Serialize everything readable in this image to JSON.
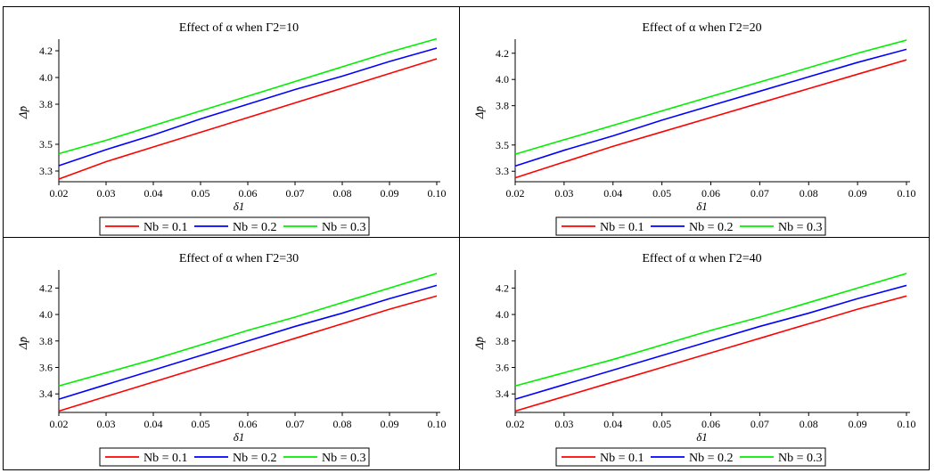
{
  "chart_data": [
    {
      "type": "line",
      "title": "Effect of α when Γ2=10",
      "xlabel": "δ1",
      "ylabel": "Δp̄",
      "xlim": [
        0.02,
        0.1
      ],
      "ylim": [
        3.22,
        4.26
      ],
      "xticks": [
        0.02,
        0.03,
        0.04,
        0.05,
        0.06,
        0.07,
        0.08,
        0.09,
        0.1
      ],
      "yticks": [
        3.3,
        3.5,
        3.8,
        4.0,
        4.2
      ],
      "x": [
        0.02,
        0.03,
        0.04,
        0.05,
        0.06,
        0.07,
        0.08,
        0.09,
        0.1
      ],
      "series": [
        {
          "name": "Nb = 0.1",
          "color": "#ff0000",
          "values": [
            3.24,
            3.37,
            3.48,
            3.59,
            3.7,
            3.81,
            3.92,
            4.03,
            4.14
          ]
        },
        {
          "name": "Nb = 0.2",
          "color": "#0000ff",
          "values": [
            3.34,
            3.46,
            3.57,
            3.69,
            3.8,
            3.91,
            4.01,
            4.12,
            4.22
          ]
        },
        {
          "name": "Nb = 0.3",
          "color": "#00ee00",
          "values": [
            3.43,
            3.53,
            3.64,
            3.75,
            3.86,
            3.97,
            4.08,
            4.19,
            4.29
          ]
        }
      ],
      "legend_position": "bottom"
    },
    {
      "type": "line",
      "title": "Effect of α when Γ2=20",
      "xlabel": "δ1",
      "ylabel": "Δp̄",
      "xlim": [
        0.02,
        0.1
      ],
      "ylim": [
        3.22,
        4.28
      ],
      "xticks": [
        0.02,
        0.03,
        0.04,
        0.05,
        0.06,
        0.07,
        0.08,
        0.09,
        0.1
      ],
      "yticks": [
        3.3,
        3.5,
        3.8,
        4.0,
        4.2
      ],
      "x": [
        0.02,
        0.03,
        0.04,
        0.05,
        0.06,
        0.07,
        0.08,
        0.09,
        0.1
      ],
      "series": [
        {
          "name": "Nb = 0.1",
          "color": "#ff0000",
          "values": [
            3.25,
            3.37,
            3.49,
            3.6,
            3.71,
            3.82,
            3.93,
            4.04,
            4.15
          ]
        },
        {
          "name": "Nb = 0.2",
          "color": "#0000ff",
          "values": [
            3.34,
            3.46,
            3.57,
            3.69,
            3.8,
            3.91,
            4.02,
            4.13,
            4.23
          ]
        },
        {
          "name": "Nb = 0.3",
          "color": "#00ee00",
          "values": [
            3.43,
            3.54,
            3.65,
            3.76,
            3.87,
            3.98,
            4.09,
            4.2,
            4.3
          ]
        }
      ],
      "legend_position": "bottom"
    },
    {
      "type": "line",
      "title": "Effect of α when Γ2=30",
      "xlabel": "δ1",
      "ylabel": "Δp̄",
      "xlim": [
        0.02,
        0.1
      ],
      "ylim": [
        3.26,
        4.31
      ],
      "xticks": [
        0.02,
        0.03,
        0.04,
        0.05,
        0.06,
        0.07,
        0.08,
        0.09,
        0.1
      ],
      "yticks": [
        3.4,
        3.6,
        3.8,
        4.0,
        4.2
      ],
      "x": [
        0.02,
        0.03,
        0.04,
        0.05,
        0.06,
        0.07,
        0.08,
        0.09,
        0.1
      ],
      "series": [
        {
          "name": "Nb = 0.1",
          "color": "#ff0000",
          "values": [
            3.27,
            3.38,
            3.49,
            3.6,
            3.71,
            3.82,
            3.93,
            4.04,
            4.14
          ]
        },
        {
          "name": "Nb = 0.2",
          "color": "#0000ff",
          "values": [
            3.36,
            3.47,
            3.58,
            3.69,
            3.8,
            3.91,
            4.01,
            4.12,
            4.22
          ]
        },
        {
          "name": "Nb = 0.3",
          "color": "#00ee00",
          "values": [
            3.46,
            3.56,
            3.66,
            3.77,
            3.88,
            3.98,
            4.09,
            4.2,
            4.31
          ]
        }
      ],
      "legend_position": "bottom"
    },
    {
      "type": "line",
      "title": "Effect of α when Γ2=40",
      "xlabel": "δ1",
      "ylabel": "Δp̄",
      "xlim": [
        0.02,
        0.1
      ],
      "ylim": [
        3.26,
        4.31
      ],
      "xticks": [
        0.02,
        0.03,
        0.04,
        0.05,
        0.06,
        0.07,
        0.08,
        0.09,
        0.1
      ],
      "yticks": [
        3.4,
        3.6,
        3.8,
        4.0,
        4.2
      ],
      "x": [
        0.02,
        0.03,
        0.04,
        0.05,
        0.06,
        0.07,
        0.08,
        0.09,
        0.1
      ],
      "series": [
        {
          "name": "Nb = 0.1",
          "color": "#ff0000",
          "values": [
            3.27,
            3.38,
            3.49,
            3.6,
            3.71,
            3.82,
            3.93,
            4.04,
            4.14
          ]
        },
        {
          "name": "Nb = 0.2",
          "color": "#0000ff",
          "values": [
            3.36,
            3.47,
            3.58,
            3.69,
            3.8,
            3.91,
            4.01,
            4.12,
            4.22
          ]
        },
        {
          "name": "Nb = 0.3",
          "color": "#00ee00",
          "values": [
            3.46,
            3.56,
            3.66,
            3.77,
            3.88,
            3.98,
            4.09,
            4.2,
            4.31
          ]
        }
      ],
      "legend_position": "bottom"
    }
  ]
}
